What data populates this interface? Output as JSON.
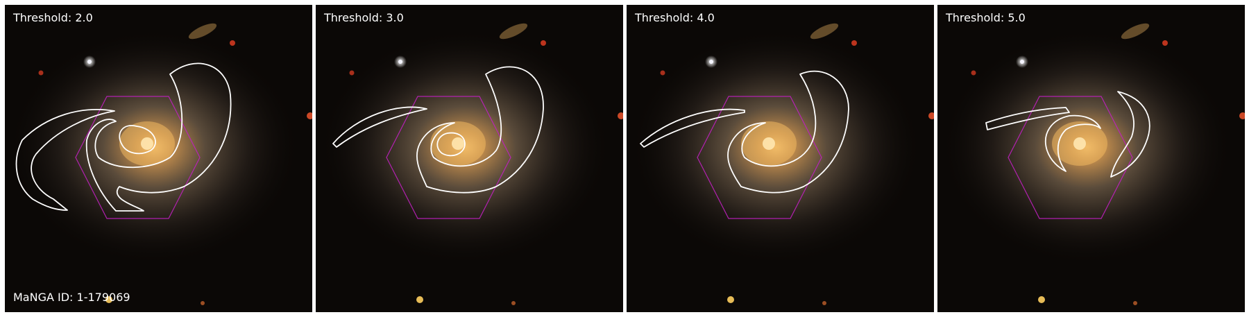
{
  "panels": [
    {
      "threshold_label": "Threshold: 2.0",
      "threshold": 2.0
    },
    {
      "threshold_label": "Threshold: 3.0",
      "threshold": 3.0
    },
    {
      "threshold_label": "Threshold: 4.0",
      "threshold": 4.0
    },
    {
      "threshold_label": "Threshold: 5.0",
      "threshold": 5.0
    }
  ],
  "galaxy_id_label": "MaNGA ID: 1-179069",
  "colors": {
    "background": "#0b0806",
    "contour": "#ffffff",
    "hexagon": "#c020c0",
    "galaxy_core": "#f0b860",
    "star_red": "#d03a20",
    "star_white": "#f4f4ff",
    "star_yellow": "#ffd060"
  }
}
